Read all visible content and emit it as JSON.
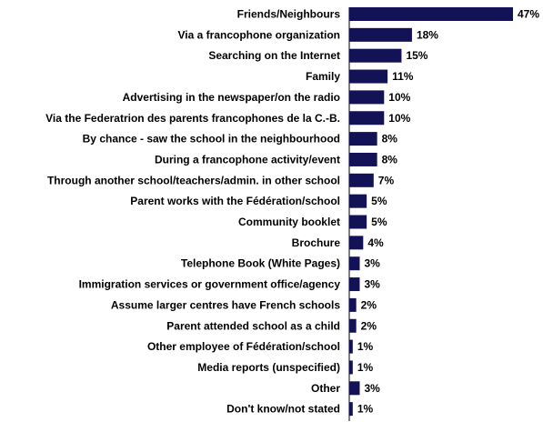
{
  "chart_data": {
    "type": "bar",
    "orientation": "horizontal",
    "title": "",
    "xlabel": "",
    "ylabel": "",
    "xlim": [
      0,
      47
    ],
    "grid": false,
    "legend": "none",
    "value_suffix": "%",
    "bar_color": "#141257",
    "categories": [
      "Friends/Neighbours",
      "Via a francophone organization",
      "Searching on the Internet",
      "Family",
      "Advertising in the newspaper/on the radio",
      "Via the Federatrion des parents francophones de la C.-B.",
      "By chance - saw the school in the neighbourhood",
      "During a francophone activity/event",
      "Through another school/teachers/admin. in other school",
      "Parent works with the Fédération/school",
      "Community booklet",
      "Brochure",
      "Telephone Book (White Pages)",
      "Immigration services or government office/agency",
      "Assume larger centres have French schools",
      "Parent attended school as a child",
      "Other employee of Fédération/school",
      "Media reports (unspecified)",
      "Other",
      "Don't know/not stated"
    ],
    "values": [
      47,
      18,
      15,
      11,
      10,
      10,
      8,
      8,
      7,
      5,
      5,
      4,
      3,
      3,
      2,
      2,
      1,
      1,
      3,
      1
    ],
    "value_labels": [
      "47%",
      "18%",
      "15%",
      "11%",
      "10%",
      "10%",
      "8%",
      "8%",
      "7%",
      "5%",
      "5%",
      "4%",
      "3%",
      "3%",
      "2%",
      "2%",
      "1%",
      "1%",
      "3%",
      "1%"
    ]
  }
}
